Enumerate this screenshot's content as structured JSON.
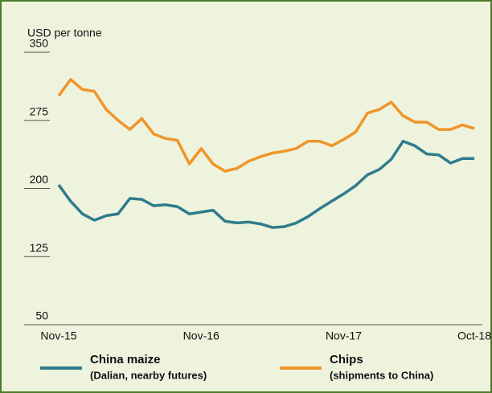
{
  "chart_data": {
    "type": "line",
    "y_label": "USD per tonne",
    "categories": [
      "Nov-15",
      null,
      null,
      null,
      null,
      null,
      null,
      null,
      null,
      null,
      null,
      null,
      "Nov-16",
      null,
      null,
      null,
      null,
      null,
      null,
      null,
      null,
      null,
      null,
      null,
      "Nov-17",
      null,
      null,
      null,
      null,
      null,
      null,
      null,
      null,
      null,
      null,
      "Oct-18"
    ],
    "series": [
      {
        "name": "China maize",
        "description": "(Dalian, nearby futures)",
        "color": "#2f7b8c",
        "values": [
          204,
          186,
          172,
          165,
          170,
          172,
          189,
          188,
          181,
          182,
          180,
          172,
          174,
          176,
          164,
          162,
          163,
          161,
          157,
          158,
          162,
          169,
          178,
          186,
          194,
          203,
          215,
          221,
          232,
          252,
          247,
          238,
          237,
          228,
          233,
          233
        ]
      },
      {
        "name": "Chips",
        "description": "(shipments to China)",
        "color": "#f0952a",
        "values": [
          302,
          320,
          309,
          307,
          287,
          275,
          265,
          277,
          260,
          255,
          253,
          227,
          244,
          227,
          219,
          222,
          230,
          235,
          239,
          241,
          244,
          252,
          252,
          247,
          254,
          262,
          283,
          287,
          295,
          280,
          273,
          273,
          265,
          265,
          270,
          266
        ]
      }
    ],
    "ylim": [
      50,
      350
    ],
    "yticks": [
      50,
      125,
      200,
      275,
      350
    ]
  }
}
